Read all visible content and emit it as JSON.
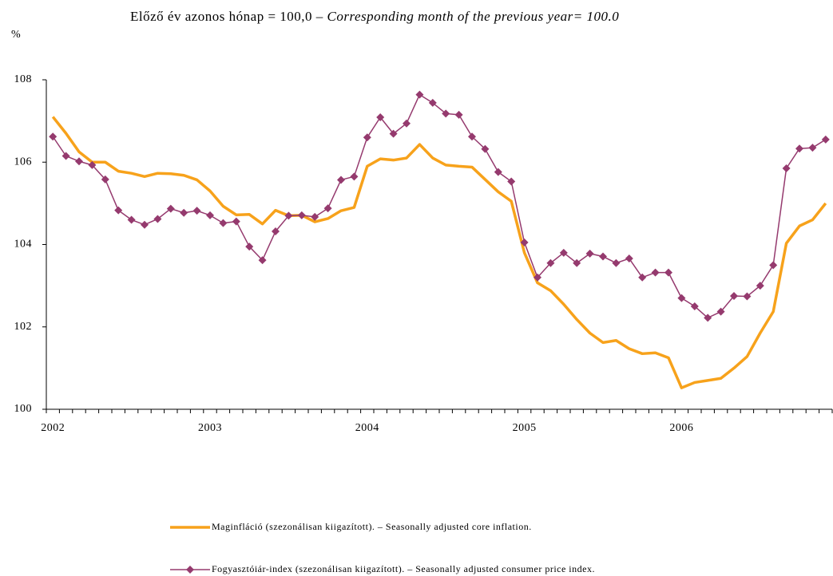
{
  "chart_data": {
    "type": "line",
    "title": "Előző év azonos hónap = 100,0 – ",
    "title_en": "Corresponding month of the previous year= 100.0",
    "y_unit": "%",
    "categories": [
      "2002",
      null,
      null,
      null,
      null,
      null,
      null,
      null,
      null,
      null,
      null,
      null,
      "2003",
      null,
      null,
      null,
      null,
      null,
      null,
      null,
      null,
      null,
      null,
      null,
      "2004",
      null,
      null,
      null,
      null,
      null,
      null,
      null,
      null,
      null,
      null,
      null,
      "2005",
      null,
      null,
      null,
      null,
      null,
      null,
      null,
      null,
      null,
      null,
      null,
      "2006",
      null,
      null,
      null,
      null,
      null,
      null,
      null,
      null,
      null,
      null,
      null
    ],
    "series": [
      {
        "name": "Maginfláció (szezonálisan kiigazított). – Seasonally adjusted core inflation.",
        "color": "#f7a21b",
        "marker": false,
        "values": [
          107.1,
          106.7,
          106.25,
          106.0,
          106.0,
          105.78,
          105.73,
          105.65,
          105.73,
          105.72,
          105.68,
          105.57,
          105.3,
          104.93,
          104.72,
          104.73,
          104.5,
          104.83,
          104.7,
          104.71,
          104.55,
          104.63,
          104.82,
          104.9,
          105.9,
          106.08,
          106.05,
          106.1,
          106.43,
          106.1,
          105.93,
          105.9,
          105.88,
          105.58,
          105.28,
          105.05,
          103.8,
          103.07,
          102.88,
          102.55,
          102.18,
          101.85,
          101.62,
          101.67,
          101.47,
          101.35,
          101.37,
          101.25,
          100.52,
          100.65,
          100.7,
          100.75,
          101.0,
          101.28,
          101.85,
          102.37,
          104.03,
          104.45,
          104.6,
          105.0
        ]
      },
      {
        "name": "Fogyasztóiár-index (szezonálisan kiigazított). – Seasonally adjusted consumer price index.",
        "color": "#953a6e",
        "marker": true,
        "values": [
          106.62,
          106.15,
          106.02,
          105.93,
          105.58,
          104.83,
          104.6,
          104.48,
          104.62,
          104.87,
          104.77,
          104.82,
          104.71,
          104.52,
          104.56,
          103.95,
          103.62,
          104.32,
          104.7,
          104.71,
          104.67,
          104.88,
          105.57,
          105.65,
          106.6,
          107.09,
          106.69,
          106.94,
          107.64,
          107.44,
          107.18,
          107.15,
          106.62,
          106.32,
          105.76,
          105.53,
          104.05,
          103.2,
          103.55,
          103.8,
          103.55,
          103.78,
          103.71,
          103.55,
          103.66,
          103.2,
          103.32,
          103.32,
          102.7,
          102.5,
          102.22,
          102.37,
          102.75,
          102.74,
          103.0,
          103.5,
          105.85,
          106.33,
          106.35,
          106.55
        ]
      }
    ],
    "ylim": [
      100,
      108
    ],
    "yticks": [
      100,
      102,
      104,
      106,
      108
    ]
  }
}
